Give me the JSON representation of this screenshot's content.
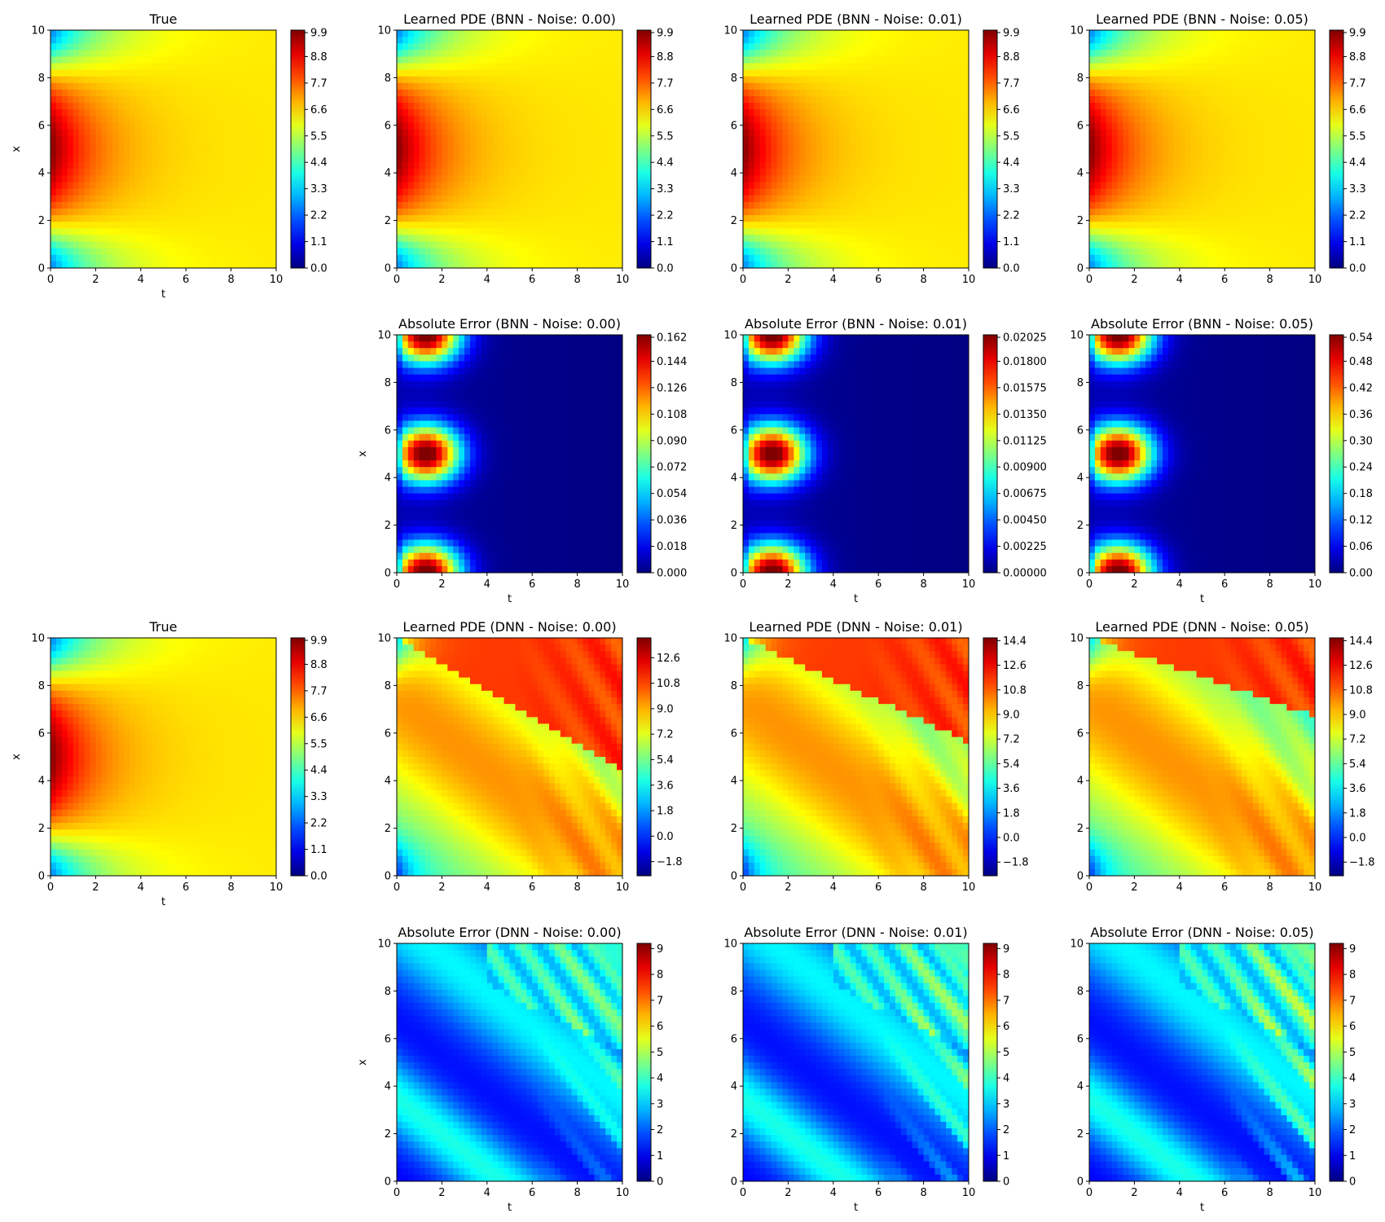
{
  "colors": {
    "colormap": "jet",
    "axes_edge": "#000000",
    "background": "#ffffff"
  },
  "chart_data": [
    {
      "type": "heatmap",
      "colormap": "jet",
      "grid": false,
      "title": "True",
      "xlabel": "t",
      "ylabel": "x",
      "xlim": [
        0,
        10
      ],
      "ylim": [
        0,
        10
      ],
      "xticks": [
        "0",
        "2",
        "4",
        "6",
        "8",
        "10"
      ],
      "yticks": [
        "0",
        "2",
        "4",
        "6",
        "8",
        "10"
      ],
      "colorbar": {
        "min": 0.0,
        "max": 9.9,
        "ticks": [
          "0.0",
          "1.1",
          "2.2",
          "3.3",
          "4.4",
          "5.5",
          "6.6",
          "7.7",
          "8.8",
          "9.9"
        ]
      }
    },
    {
      "type": "heatmap",
      "colormap": "jet",
      "grid": false,
      "title": "Learned PDE (BNN - Noise: 0.00)",
      "xlabel": "",
      "ylabel": "",
      "xlim": [
        0,
        10
      ],
      "ylim": [
        0,
        10
      ],
      "xticks": [
        "0",
        "2",
        "4",
        "6",
        "8",
        "10"
      ],
      "yticks": [
        "0",
        "2",
        "4",
        "6",
        "8",
        "10"
      ],
      "colorbar": {
        "min": 0.0,
        "max": 9.9,
        "ticks": [
          "0.0",
          "1.1",
          "2.2",
          "3.3",
          "4.4",
          "5.5",
          "6.6",
          "7.7",
          "8.8",
          "9.9"
        ]
      }
    },
    {
      "type": "heatmap",
      "colormap": "jet",
      "grid": false,
      "title": "Learned PDE (BNN - Noise: 0.01)",
      "xlabel": "",
      "ylabel": "",
      "xlim": [
        0,
        10
      ],
      "ylim": [
        0,
        10
      ],
      "xticks": [
        "0",
        "2",
        "4",
        "6",
        "8",
        "10"
      ],
      "yticks": [
        "0",
        "2",
        "4",
        "6",
        "8",
        "10"
      ],
      "colorbar": {
        "min": 0.0,
        "max": 9.9,
        "ticks": [
          "0.0",
          "1.1",
          "2.2",
          "3.3",
          "4.4",
          "5.5",
          "6.6",
          "7.7",
          "8.8",
          "9.9"
        ]
      }
    },
    {
      "type": "heatmap",
      "colormap": "jet",
      "grid": false,
      "title": "Learned PDE (BNN - Noise: 0.05)",
      "xlabel": "",
      "ylabel": "",
      "xlim": [
        0,
        10
      ],
      "ylim": [
        0,
        10
      ],
      "xticks": [
        "0",
        "2",
        "4",
        "6",
        "8",
        "10"
      ],
      "yticks": [
        "0",
        "2",
        "4",
        "6",
        "8",
        "10"
      ],
      "colorbar": {
        "min": 0.0,
        "max": 9.9,
        "ticks": [
          "0.0",
          "1.1",
          "2.2",
          "3.3",
          "4.4",
          "5.5",
          "6.6",
          "7.7",
          "8.8",
          "9.9"
        ]
      }
    },
    {
      "type": "heatmap",
      "colormap": "jet",
      "grid": false,
      "title": "Absolute Error (BNN - Noise: 0.00)",
      "xlabel": "t",
      "ylabel": "x",
      "xlim": [
        0,
        10
      ],
      "ylim": [
        0,
        10
      ],
      "xticks": [
        "0",
        "2",
        "4",
        "6",
        "8",
        "10"
      ],
      "yticks": [
        "0",
        "2",
        "4",
        "6",
        "8",
        "10"
      ],
      "colorbar": {
        "min": 0.0,
        "max": 0.162,
        "ticks": [
          "0.000",
          "0.018",
          "0.036",
          "0.054",
          "0.072",
          "0.090",
          "0.108",
          "0.126",
          "0.144",
          "0.162"
        ]
      }
    },
    {
      "type": "heatmap",
      "colormap": "jet",
      "grid": false,
      "title": "Absolute Error (BNN - Noise: 0.01)",
      "xlabel": "t",
      "ylabel": "",
      "xlim": [
        0,
        10
      ],
      "ylim": [
        0,
        10
      ],
      "xticks": [
        "0",
        "2",
        "4",
        "6",
        "8",
        "10"
      ],
      "yticks": [
        "0",
        "2",
        "4",
        "6",
        "8",
        "10"
      ],
      "colorbar": {
        "min": 0.0,
        "max": 0.02025,
        "ticks": [
          "0.00000",
          "0.00225",
          "0.00450",
          "0.00675",
          "0.00900",
          "0.01125",
          "0.01350",
          "0.01575",
          "0.01800",
          "0.02025"
        ]
      }
    },
    {
      "type": "heatmap",
      "colormap": "jet",
      "grid": false,
      "title": "Absolute Error (BNN - Noise: 0.05)",
      "xlabel": "t",
      "ylabel": "",
      "xlim": [
        0,
        10
      ],
      "ylim": [
        0,
        10
      ],
      "xticks": [
        "0",
        "2",
        "4",
        "6",
        "8",
        "10"
      ],
      "yticks": [
        "0",
        "2",
        "4",
        "6",
        "8",
        "10"
      ],
      "colorbar": {
        "min": 0.0,
        "max": 0.54,
        "ticks": [
          "0.00",
          "0.06",
          "0.12",
          "0.18",
          "0.24",
          "0.30",
          "0.36",
          "0.42",
          "0.48",
          "0.54"
        ]
      }
    },
    {
      "type": "heatmap",
      "colormap": "jet",
      "grid": false,
      "title": "True",
      "xlabel": "t",
      "ylabel": "x",
      "xlim": [
        0,
        10
      ],
      "ylim": [
        0,
        10
      ],
      "xticks": [
        "0",
        "2",
        "4",
        "6",
        "8",
        "10"
      ],
      "yticks": [
        "0",
        "2",
        "4",
        "6",
        "8",
        "10"
      ],
      "colorbar": {
        "min": 0.0,
        "max": 9.9,
        "ticks": [
          "0.0",
          "1.1",
          "2.2",
          "3.3",
          "4.4",
          "5.5",
          "6.6",
          "7.7",
          "8.8",
          "9.9"
        ]
      }
    },
    {
      "type": "heatmap",
      "colormap": "jet",
      "grid": false,
      "title": "Learned PDE (DNN - Noise: 0.00)",
      "xlabel": "",
      "ylabel": "",
      "xlim": [
        0,
        10
      ],
      "ylim": [
        0,
        10
      ],
      "xticks": [
        "0",
        "2",
        "4",
        "6",
        "8",
        "10"
      ],
      "yticks": [
        "0",
        "2",
        "4",
        "6",
        "8",
        "10"
      ],
      "colorbar": {
        "min": -2.8,
        "max": 14.0,
        "ticks": [
          "−1.8",
          "0.0",
          "1.8",
          "3.6",
          "5.4",
          "7.2",
          "9.0",
          "10.8",
          "12.6"
        ]
      }
    },
    {
      "type": "heatmap",
      "colormap": "jet",
      "grid": false,
      "title": "Learned PDE (DNN - Noise: 0.01)",
      "xlabel": "",
      "ylabel": "",
      "xlim": [
        0,
        10
      ],
      "ylim": [
        0,
        10
      ],
      "xticks": [
        "0",
        "2",
        "4",
        "6",
        "8",
        "10"
      ],
      "yticks": [
        "0",
        "2",
        "4",
        "6",
        "8",
        "10"
      ],
      "colorbar": {
        "min": -2.8,
        "max": 14.6,
        "ticks": [
          "−1.8",
          "0.0",
          "1.8",
          "3.6",
          "5.4",
          "7.2",
          "9.0",
          "10.8",
          "12.6",
          "14.4"
        ]
      }
    },
    {
      "type": "heatmap",
      "colormap": "jet",
      "grid": false,
      "title": "Learned PDE (DNN - Noise: 0.05)",
      "xlabel": "",
      "ylabel": "",
      "xlim": [
        0,
        10
      ],
      "ylim": [
        0,
        10
      ],
      "xticks": [
        "0",
        "2",
        "4",
        "6",
        "8",
        "10"
      ],
      "yticks": [
        "0",
        "2",
        "4",
        "6",
        "8",
        "10"
      ],
      "colorbar": {
        "min": -2.8,
        "max": 14.6,
        "ticks": [
          "−1.8",
          "0.0",
          "1.8",
          "3.6",
          "5.4",
          "7.2",
          "9.0",
          "10.8",
          "12.6",
          "14.4"
        ]
      }
    },
    {
      "type": "heatmap",
      "colormap": "jet",
      "grid": false,
      "title": "Absolute Error (DNN - Noise: 0.00)",
      "xlabel": "t",
      "ylabel": "x",
      "xlim": [
        0,
        10
      ],
      "ylim": [
        0,
        10
      ],
      "xticks": [
        "0",
        "2",
        "4",
        "6",
        "8",
        "10"
      ],
      "yticks": [
        "0",
        "2",
        "4",
        "6",
        "8",
        "10"
      ],
      "colorbar": {
        "min": 0,
        "max": 9.2,
        "ticks": [
          "0",
          "1",
          "2",
          "3",
          "4",
          "5",
          "6",
          "7",
          "8",
          "9"
        ]
      }
    },
    {
      "type": "heatmap",
      "colormap": "jet",
      "grid": false,
      "title": "Absolute Error (DNN - Noise: 0.01)",
      "xlabel": "t",
      "ylabel": "",
      "xlim": [
        0,
        10
      ],
      "ylim": [
        0,
        10
      ],
      "xticks": [
        "0",
        "2",
        "4",
        "6",
        "8",
        "10"
      ],
      "yticks": [
        "0",
        "2",
        "4",
        "6",
        "8",
        "10"
      ],
      "colorbar": {
        "min": 0,
        "max": 9.2,
        "ticks": [
          "0",
          "1",
          "2",
          "3",
          "4",
          "5",
          "6",
          "7",
          "8",
          "9"
        ]
      }
    },
    {
      "type": "heatmap",
      "colormap": "jet",
      "grid": false,
      "title": "Absolute Error (DNN - Noise: 0.05)",
      "xlabel": "t",
      "ylabel": "",
      "xlim": [
        0,
        10
      ],
      "ylim": [
        0,
        10
      ],
      "xticks": [
        "0",
        "2",
        "4",
        "6",
        "8",
        "10"
      ],
      "yticks": [
        "0",
        "2",
        "4",
        "6",
        "8",
        "10"
      ],
      "colorbar": {
        "min": 0,
        "max": 9.2,
        "ticks": [
          "0",
          "1",
          "2",
          "3",
          "4",
          "5",
          "6",
          "7",
          "8",
          "9"
        ]
      }
    }
  ]
}
